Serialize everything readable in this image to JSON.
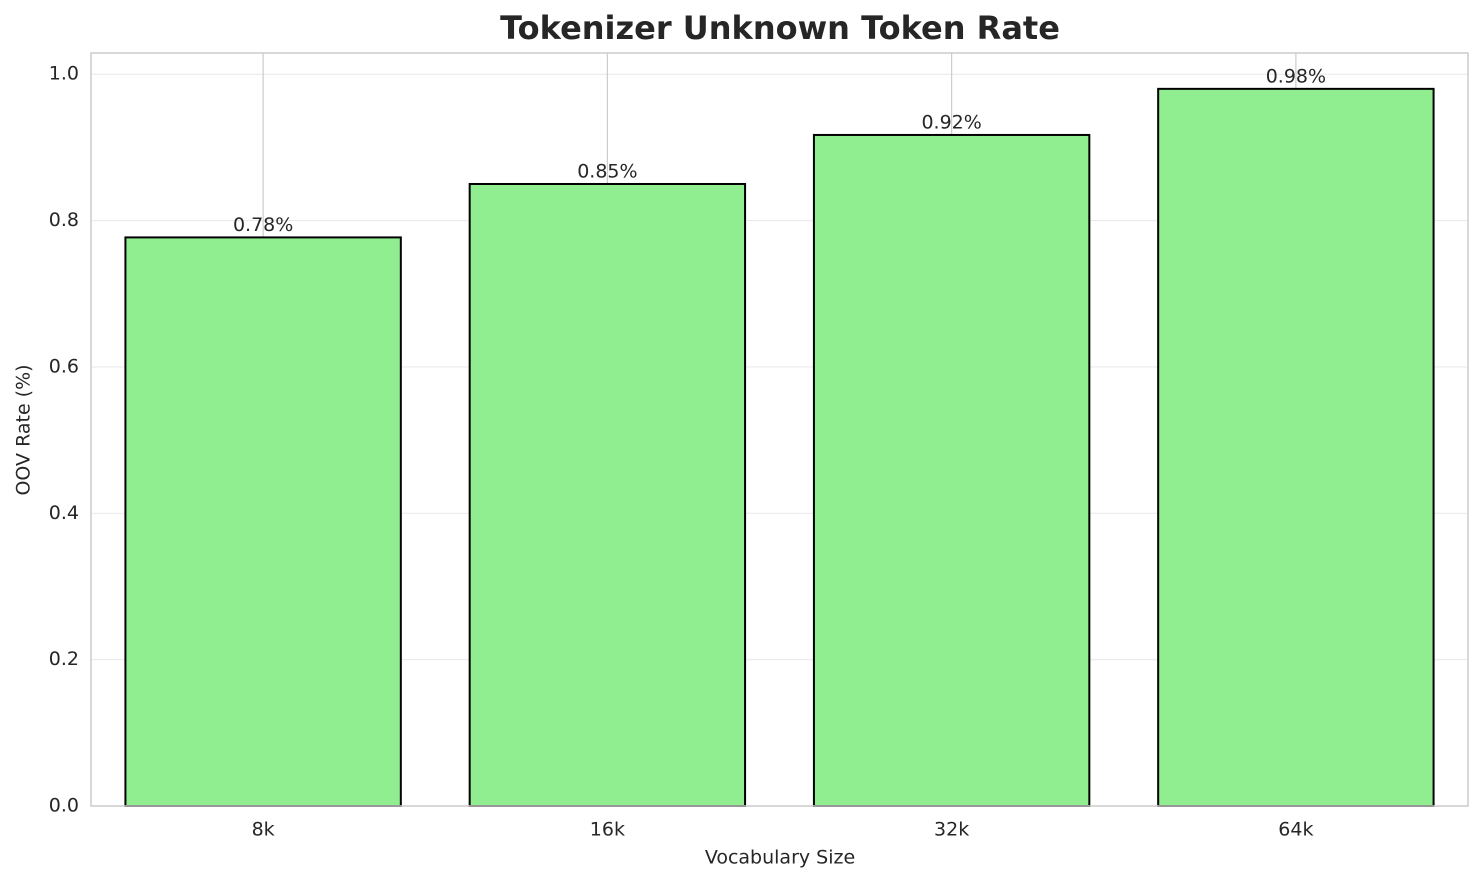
{
  "chart_data": {
    "type": "bar",
    "title": "Tokenizer Unknown Token Rate",
    "x_label": "Vocabulary Size",
    "y_label": "OOV Rate (%)",
    "categories": [
      "8k",
      "16k",
      "32k",
      "64k"
    ],
    "values": [
      0.777,
      0.85,
      0.917,
      0.98
    ],
    "value_labels": [
      "0.78%",
      "0.85%",
      "0.92%",
      "0.98%"
    ],
    "color": "#90ee90",
    "edgecolor": "#000000",
    "ylim": [
      0,
      1.029
    ],
    "yticks": [
      {
        "value": 0,
        "label": "0.0"
      },
      0.2,
      0.4,
      0.6,
      0.8,
      {
        "value": 1,
        "label": "1.0"
      }
    ],
    "grid": true
  }
}
